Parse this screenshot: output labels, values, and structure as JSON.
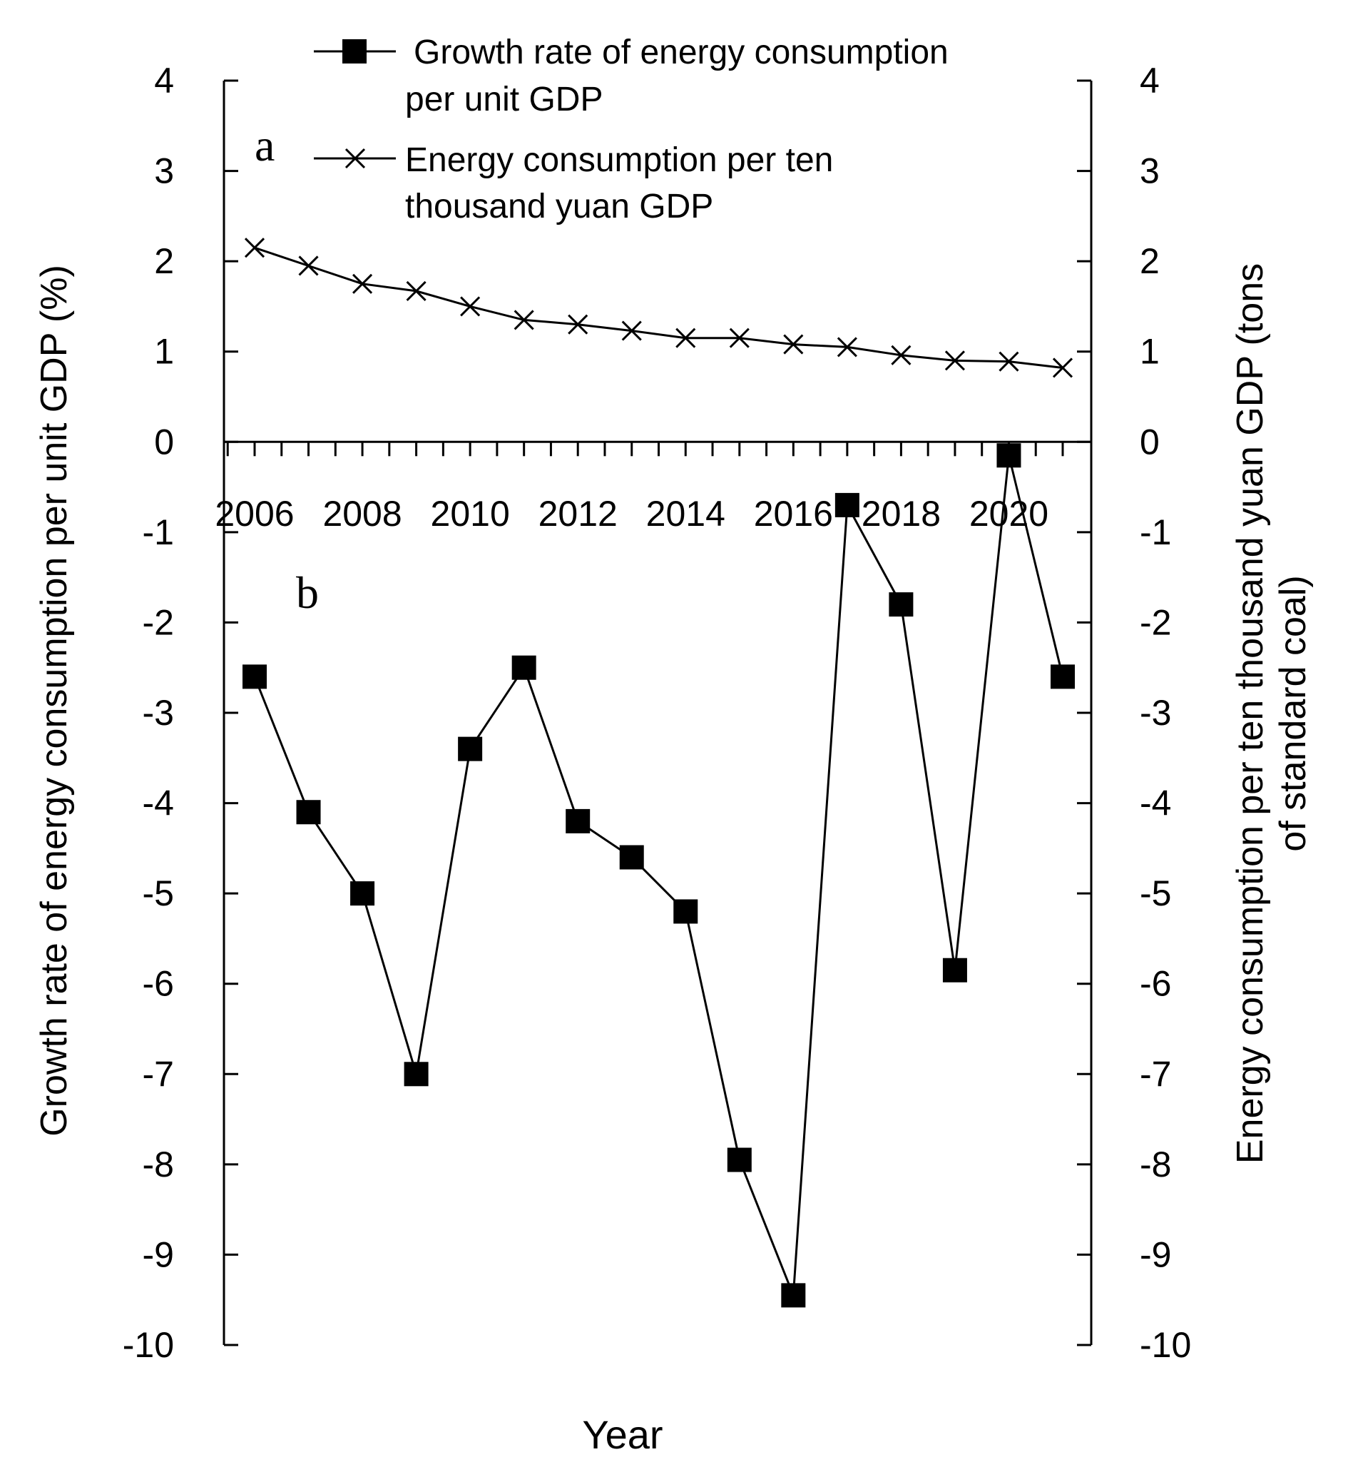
{
  "chart_data": {
    "type": "line",
    "title": "",
    "xlabel": "Year",
    "ylabel_left": "Growth rate of energy consumption per unit GDP (%)",
    "ylabel_right": [
      "Energy consumption per ten thousand yuan GDP (tons",
      "of standard coal)"
    ],
    "ylim": [
      -10,
      4
    ],
    "yticks": [
      4,
      3,
      2,
      1,
      0,
      -1,
      -2,
      -3,
      -4,
      -5,
      -6,
      -7,
      -8,
      -9,
      -10
    ],
    "x": [
      2006,
      2007,
      2008,
      2009,
      2010,
      2011,
      2012,
      2013,
      2014,
      2015,
      2016,
      2017,
      2018,
      2019,
      2020,
      2021
    ],
    "xtick_labels": [
      "2006",
      "2008",
      "2010",
      "2012",
      "2014",
      "2016",
      "2018",
      "2020"
    ],
    "panel_labels": [
      "a",
      "b"
    ],
    "legend": [
      {
        "lines": [
          "Growth rate of energy consumption",
          "per unit GDP"
        ],
        "marker": "square"
      },
      {
        "lines": [
          "Energy consumption per ten",
          "thousand yuan GDP"
        ],
        "marker": "x"
      }
    ],
    "series": [
      {
        "name": "Growth rate of energy consumption per unit GDP",
        "axis": "left",
        "marker": "square",
        "values": [
          -2.6,
          -4.1,
          -5.0,
          -7.0,
          -3.4,
          -2.5,
          -4.2,
          -4.6,
          -5.2,
          -7.95,
          -9.45,
          -0.7,
          -1.8,
          -5.85,
          -0.15,
          -2.6
        ]
      },
      {
        "name": "Energy consumption per ten thousand yuan GDP",
        "axis": "right",
        "marker": "x",
        "values": [
          2.15,
          1.95,
          1.75,
          1.67,
          1.5,
          1.35,
          1.3,
          1.23,
          1.15,
          1.15,
          1.08,
          1.05,
          0.96,
          0.9,
          0.89,
          0.82
        ]
      }
    ]
  }
}
